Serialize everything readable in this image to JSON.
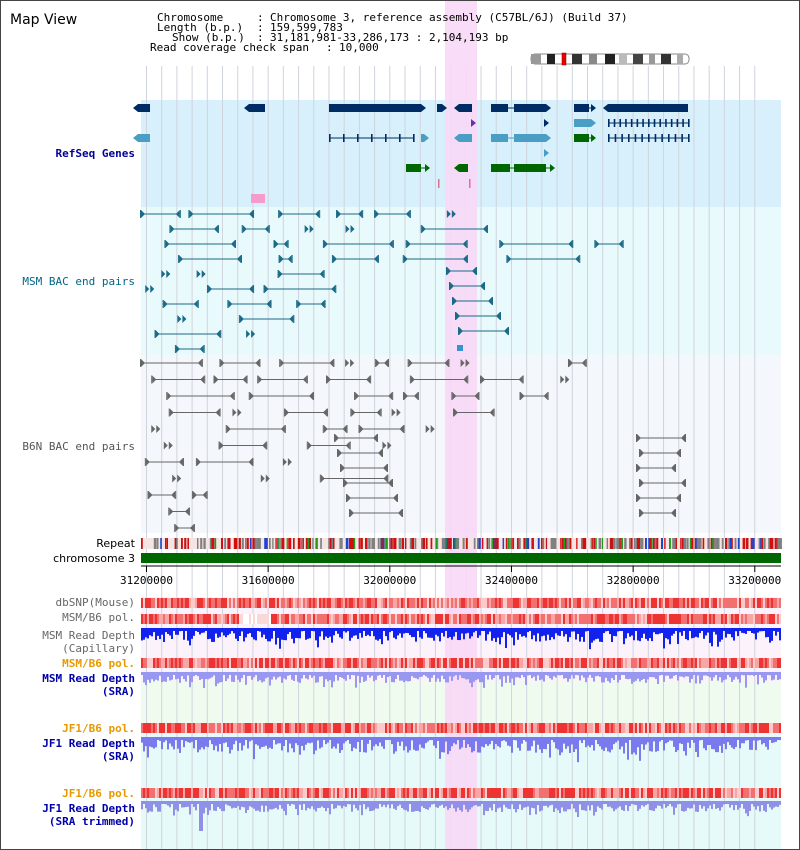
{
  "title": "Map View",
  "header": {
    "labels": [
      "Chromosome",
      "Length (b.p.)",
      "Show (b.p.)",
      "Read coverage check span"
    ],
    "values": [
      "Chromosome 3, reference assembly (C57BL/6J) (Build 37)",
      "159,599,783",
      "31,181,981-33,286,173 : 2,104,193 bp",
      "10,000"
    ]
  },
  "tracks": {
    "refseq": "RefSeq Genes",
    "msm_bac": "MSM BAC end pairs",
    "b6n_bac": "B6N BAC end pairs",
    "repeat": "Repeat",
    "chromosome": "chromosome 3"
  },
  "axis": {
    "start": 31181981,
    "end": 33286173,
    "ticks": [
      "31200000",
      "31600000",
      "32000000",
      "32400000",
      "32800000",
      "33200000"
    ]
  },
  "bottom_tracks": [
    {
      "line1": "dbSNP(Mouse)",
      "line2": "",
      "color": "#666666"
    },
    {
      "line1": "MSM/B6 pol.",
      "line2": "",
      "color": "#666666"
    },
    {
      "line1": "MSM Read Depth",
      "line2": "(Capillary)",
      "color": "#666666"
    },
    {
      "line1": "MSM/B6 pol.",
      "line2": "",
      "color": "#e69a00"
    },
    {
      "line1": "MSM Read Depth",
      "line2": "(SRA)",
      "color": "#0000aa"
    },
    {
      "line1": "JF1/B6 pol.",
      "line2": "",
      "color": "#e69a00"
    },
    {
      "line1": "JF1 Read Depth",
      "line2": "(SRA)",
      "color": "#0000aa"
    },
    {
      "line1": "JF1/B6 pol.",
      "line2": "",
      "color": "#e69a00"
    },
    {
      "line1": "JF1 Read Depth",
      "line2": "(SRA trimmed)",
      "color": "#0000aa"
    }
  ],
  "colors": {
    "refseq_bg": "#d8f0fb",
    "msm_bg": "#e9fafc",
    "b6n_bg": "#f4f7fb",
    "highlight": "#f8d8f6",
    "gene_dark": "#002c66",
    "gene_mid": "#4a9ec4",
    "gene_green": "#006600",
    "bac_msm": "#1a6a88",
    "bac_b6n": "#666666",
    "chromosome": "#006600",
    "label_refseq": "#000099",
    "label_msm": "#006688",
    "label_b6n": "#555555"
  }
}
